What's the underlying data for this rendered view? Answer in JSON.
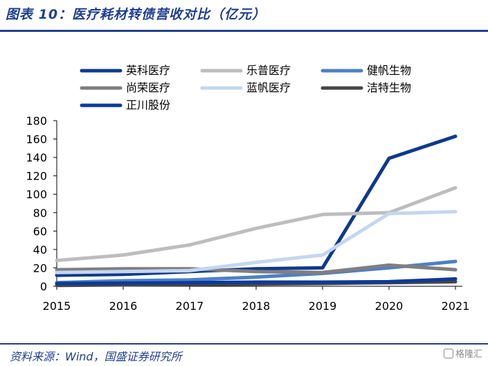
{
  "header": {
    "title": "图表 10：医疗耗材转债营收对比（亿元）"
  },
  "footer": {
    "source": "资料来源：Wind，国盛证券研究所",
    "watermark": "格隆汇"
  },
  "chart_data": {
    "type": "line",
    "title": "",
    "xlabel": "",
    "ylabel": "",
    "x": [
      "2015",
      "2016",
      "2017",
      "2018",
      "2019",
      "2020",
      "2021"
    ],
    "ylim": [
      0,
      180
    ],
    "yticks": [
      0,
      20,
      40,
      60,
      80,
      100,
      120,
      140,
      160,
      180
    ],
    "grid": false,
    "legend_position": "top",
    "series": [
      {
        "name": "英科医疗",
        "color": "#0e3a8c",
        "values": [
          12,
          13,
          16,
          19,
          20,
          139,
          163
        ]
      },
      {
        "name": "乐普医疗",
        "color": "#bdbdbd",
        "values": [
          28,
          34,
          45,
          63,
          78,
          80,
          107
        ]
      },
      {
        "name": "健帆生物",
        "color": "#4f7fc6",
        "values": [
          4,
          6,
          7,
          10,
          14,
          20,
          27
        ]
      },
      {
        "name": "尚荣医疗",
        "color": "#7f7f7f",
        "values": [
          18,
          19,
          19,
          16,
          15,
          23,
          18
        ]
      },
      {
        "name": "蓝帆医疗",
        "color": "#c5d6ef",
        "values": [
          15,
          16,
          17,
          26,
          34,
          79,
          81
        ]
      },
      {
        "name": "洁特生物",
        "color": "#474747",
        "values": [
          1,
          1.5,
          2,
          2.5,
          3,
          4,
          5
        ]
      },
      {
        "name": "正川股份",
        "color": "#0b3a9a",
        "values": [
          3,
          3.5,
          4,
          4.5,
          4.5,
          5,
          8
        ]
      }
    ]
  }
}
